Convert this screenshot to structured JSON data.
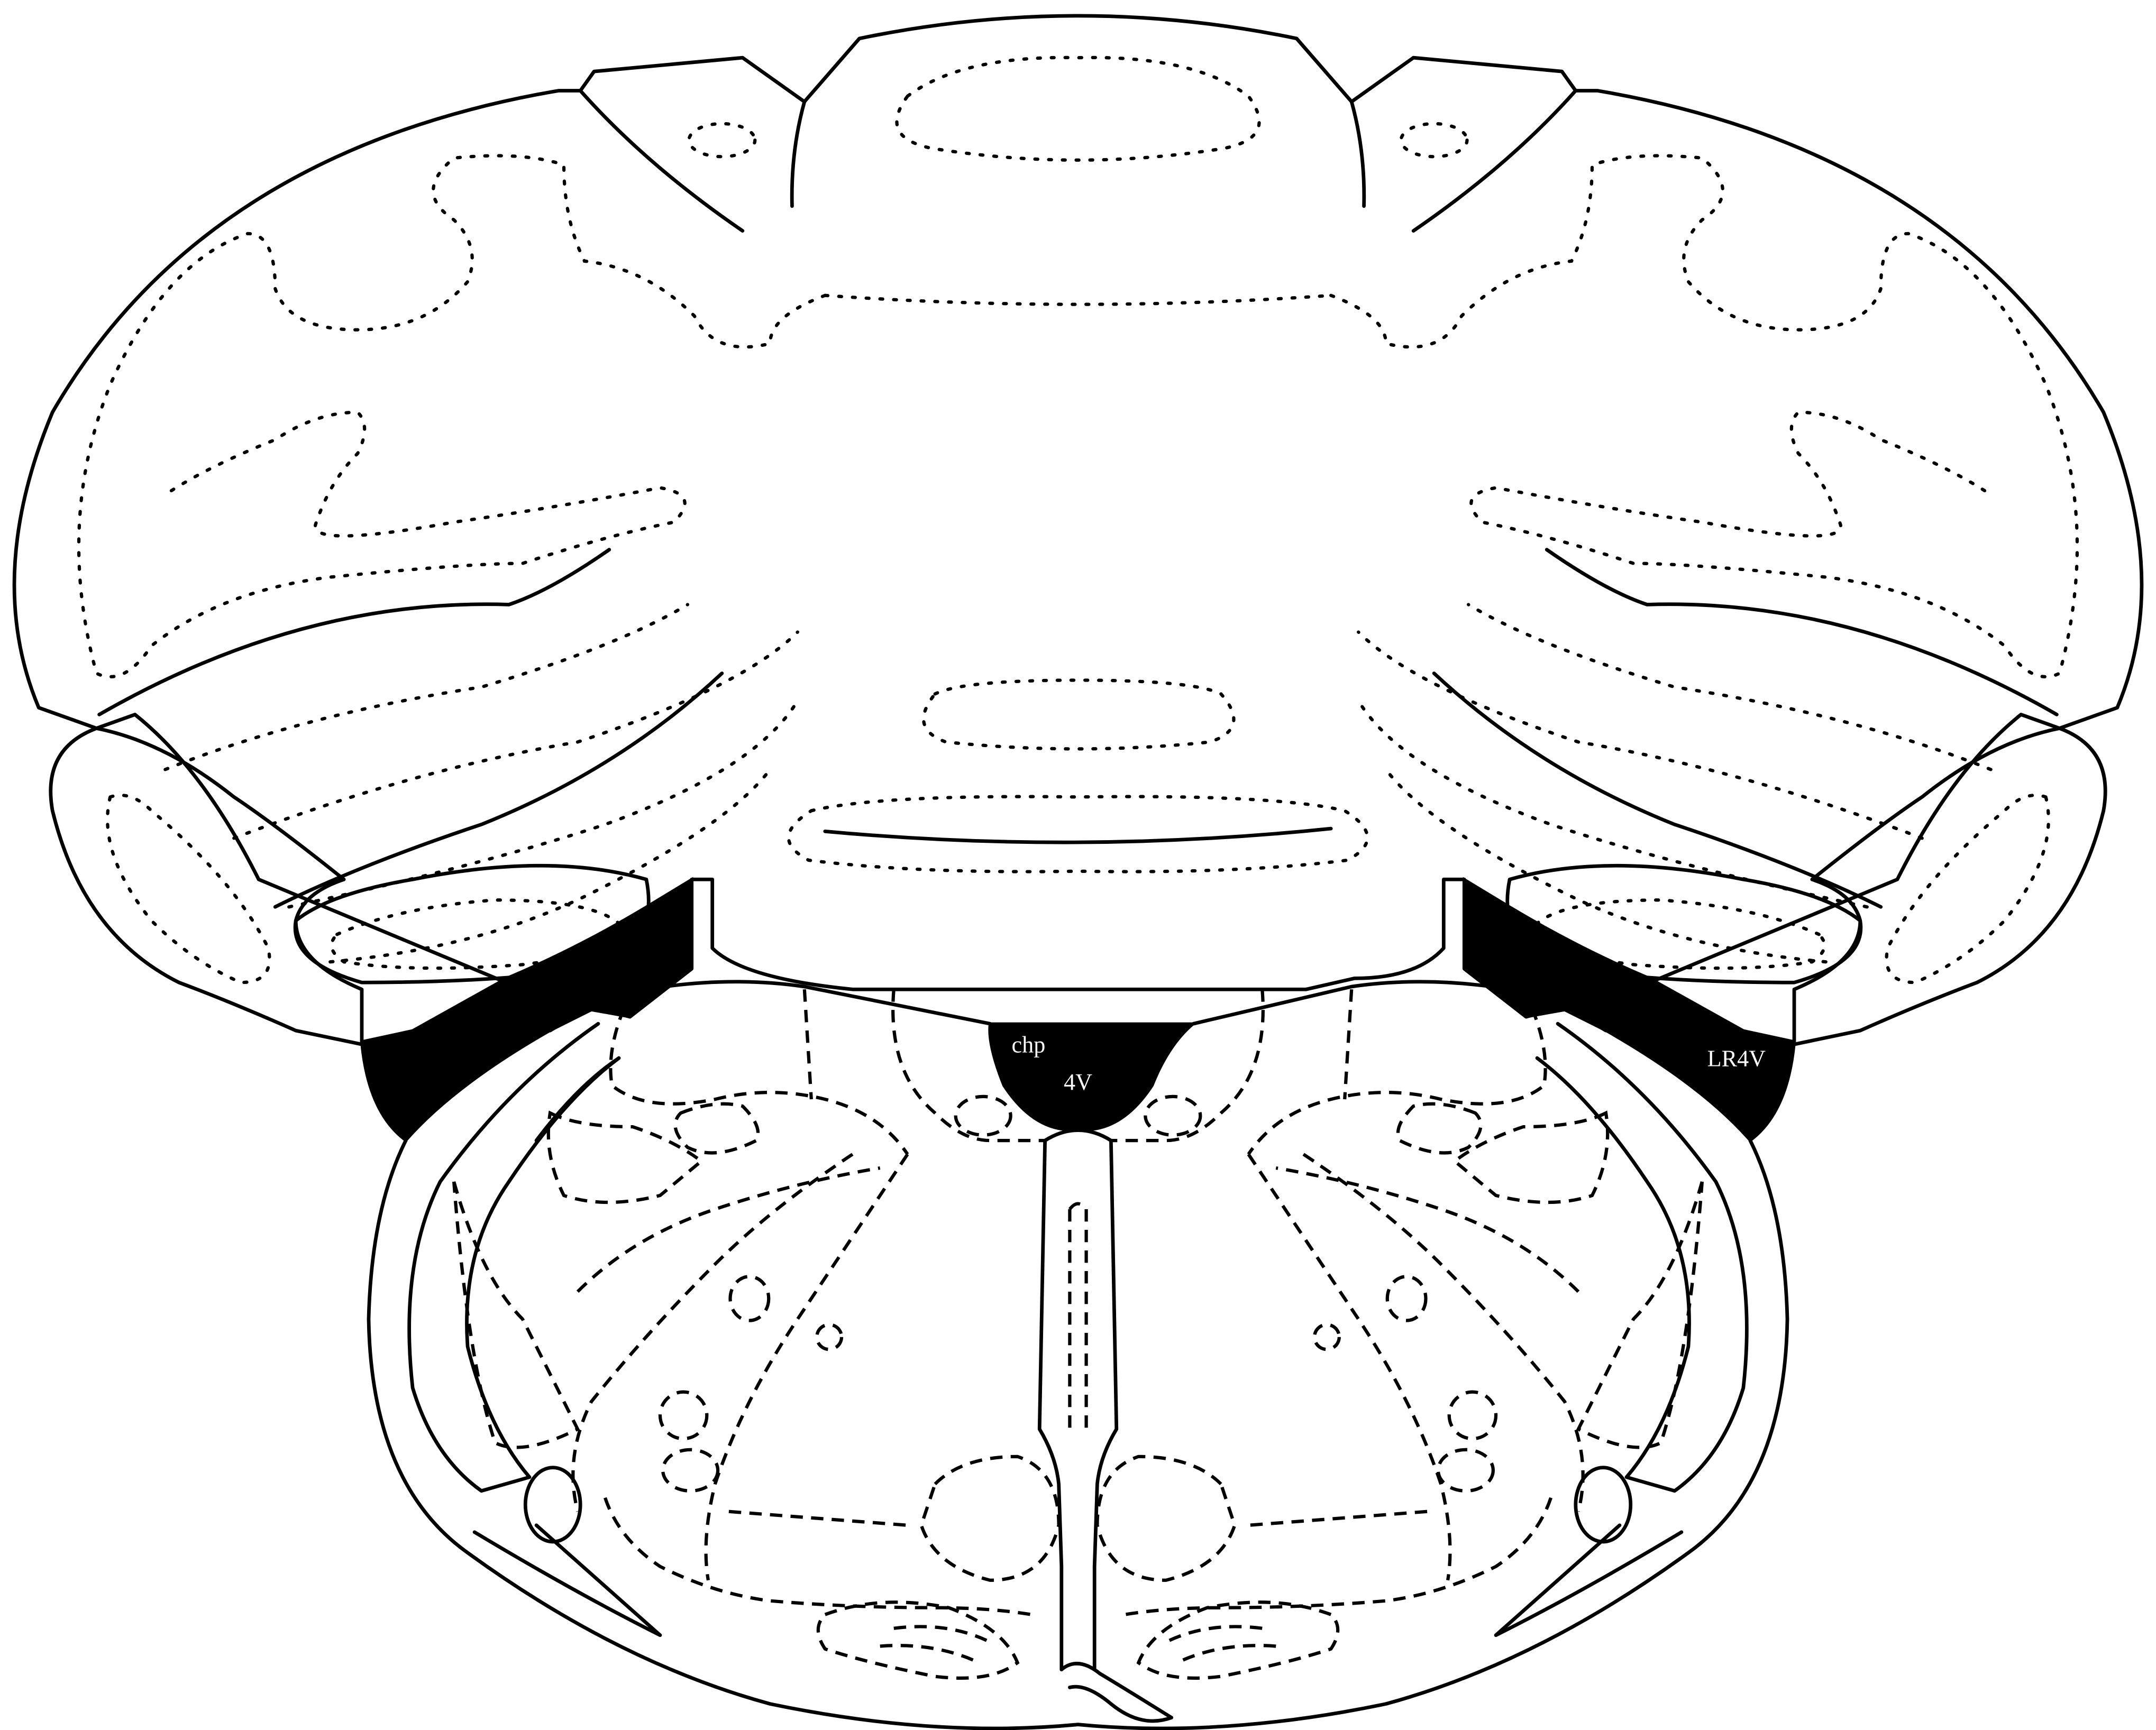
{
  "labels": {
    "choroid_plexus": "chp",
    "fourth_ventricle": "4V",
    "lateral_recess": "LR4V"
  },
  "colors": {
    "line": "#000000",
    "ventricle_fill": "#000000",
    "label_text": "#ffffff",
    "background": "#ffffff"
  }
}
